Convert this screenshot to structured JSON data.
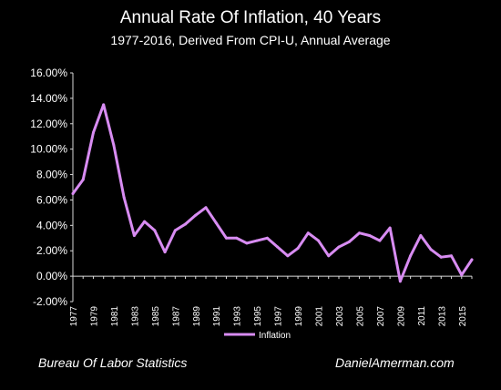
{
  "title": "Annual Rate Of Inflation, 40 Years",
  "subtitle": "1977-2016, Derived From CPI-U, Annual Average",
  "footer": {
    "left": "Bureau Of Labor Statistics",
    "right": "DanielAmerman.com"
  },
  "colors": {
    "background": "#000000",
    "series": "#d88cf2",
    "axis": "#d9d9d9",
    "text": "#ffffff"
  },
  "chart_data": {
    "type": "line",
    "title": "Annual Rate Of Inflation, 40 Years",
    "subtitle": "1977-2016, Derived From CPI-U, Annual Average",
    "x": [
      1977,
      1978,
      1979,
      1980,
      1981,
      1982,
      1983,
      1984,
      1985,
      1986,
      1987,
      1988,
      1989,
      1990,
      1991,
      1992,
      1993,
      1994,
      1995,
      1996,
      1997,
      1998,
      1999,
      2000,
      2001,
      2002,
      2003,
      2004,
      2005,
      2006,
      2007,
      2008,
      2009,
      2010,
      2011,
      2012,
      2013,
      2014,
      2015,
      2016
    ],
    "x_tick_labels": [
      "1977",
      "1979",
      "1981",
      "1983",
      "1985",
      "1987",
      "1989",
      "1991",
      "1993",
      "1995",
      "1997",
      "1999",
      "2001",
      "2003",
      "2005",
      "2007",
      "2009",
      "2011",
      "2013",
      "2015"
    ],
    "y_tick_labels": [
      "16.00%",
      "14.00%",
      "12.00%",
      "10.00%",
      "8.00%",
      "6.00%",
      "4.00%",
      "2.00%",
      "0.00%",
      "-2.00%"
    ],
    "ylim": [
      -2,
      16
    ],
    "series": [
      {
        "name": "Inflation",
        "values": [
          6.5,
          7.6,
          11.3,
          13.5,
          10.3,
          6.2,
          3.2,
          4.3,
          3.6,
          1.9,
          3.6,
          4.1,
          4.8,
          5.4,
          4.2,
          3.0,
          3.0,
          2.6,
          2.8,
          3.0,
          2.3,
          1.6,
          2.2,
          3.4,
          2.8,
          1.6,
          2.3,
          2.7,
          3.4,
          3.2,
          2.8,
          3.8,
          -0.4,
          1.6,
          3.2,
          2.1,
          1.5,
          1.6,
          0.1,
          1.3
        ]
      }
    ],
    "legend": {
      "placement": "bottom-center",
      "entries": [
        "Inflation"
      ]
    },
    "grid": false
  }
}
